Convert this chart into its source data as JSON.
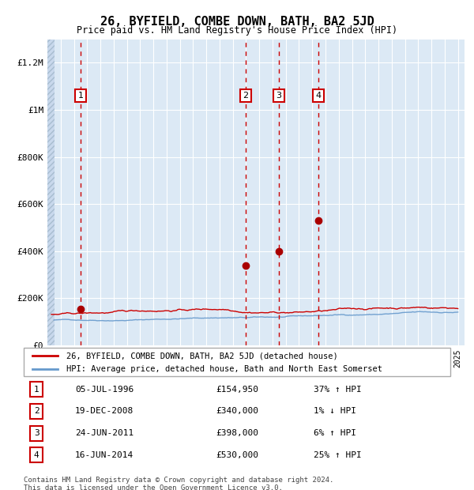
{
  "title": "26, BYFIELD, COMBE DOWN, BATH, BA2 5JD",
  "subtitle": "Price paid vs. HM Land Registry's House Price Index (HPI)",
  "background_color": "#dce9f5",
  "grid_color": "#ffffff",
  "red_line_color": "#cc0000",
  "blue_line_color": "#6699cc",
  "sale_marker_color": "#aa0000",
  "dashed_line_color": "#cc0000",
  "ylim": [
    0,
    1300000
  ],
  "yticks": [
    0,
    200000,
    400000,
    600000,
    800000,
    1000000,
    1200000
  ],
  "ytick_labels": [
    "£0",
    "£200K",
    "£400K",
    "£600K",
    "£800K",
    "£1M",
    "£1.2M"
  ],
  "sales": [
    {
      "num": 1,
      "year": 1996.5,
      "price": 154950,
      "date": "05-JUL-1996",
      "pct": "37%",
      "dir": "↑"
    },
    {
      "num": 2,
      "year": 2008.96,
      "price": 340000,
      "date": "19-DEC-2008",
      "pct": "1%",
      "dir": "↓"
    },
    {
      "num": 3,
      "year": 2011.48,
      "price": 398000,
      "date": "24-JUN-2011",
      "pct": "6%",
      "dir": "↑"
    },
    {
      "num": 4,
      "year": 2014.46,
      "price": 530000,
      "date": "16-JUN-2014",
      "pct": "25%",
      "dir": "↑"
    }
  ],
  "legend_entries": [
    "26, BYFIELD, COMBE DOWN, BATH, BA2 5JD (detached house)",
    "HPI: Average price, detached house, Bath and North East Somerset"
  ],
  "footer": "Contains HM Land Registry data © Crown copyright and database right 2024.\nThis data is licensed under the Open Government Licence v3.0."
}
